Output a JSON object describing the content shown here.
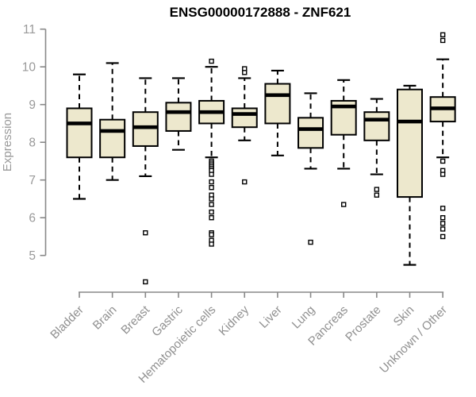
{
  "colors": {
    "background": "#ffffff",
    "box_fill": "#EDE8CD",
    "box_stroke": "#000000",
    "median": "#000000",
    "whisker": "#000000",
    "outlier_stroke": "#000000",
    "axis_line": "#888888",
    "tick_label": "#999999",
    "category_label": "#909090",
    "title": "#000000",
    "ylabel": "#999999"
  },
  "chart_data": {
    "type": "boxplot",
    "title": "ENSG00000172888 - ZNF621",
    "xlabel": "",
    "ylabel": "Expression",
    "ylim": [
      5,
      11
    ],
    "yticks": [
      5,
      6,
      7,
      8,
      9,
      10,
      11
    ],
    "grid": false,
    "legend": "none",
    "categories": [
      "Bladder",
      "Brain",
      "Breast",
      "Gastric",
      "Hematopoietic cells",
      "Kidney",
      "Liver",
      "Lung",
      "Pancreas",
      "Prostate",
      "Skin",
      "Unknown / Other"
    ],
    "series": [
      {
        "category": "Bladder",
        "whisker_low": 6.5,
        "q1": 7.6,
        "median": 8.5,
        "q3": 8.9,
        "whisker_high": 9.8,
        "outliers": []
      },
      {
        "category": "Brain",
        "whisker_low": 7.0,
        "q1": 7.6,
        "median": 8.3,
        "q3": 8.6,
        "whisker_high": 10.1,
        "outliers": []
      },
      {
        "category": "Breast",
        "whisker_low": 7.1,
        "q1": 7.9,
        "median": 8.4,
        "q3": 8.8,
        "whisker_high": 9.7,
        "outliers": [
          5.6,
          4.3
        ]
      },
      {
        "category": "Gastric",
        "whisker_low": 7.8,
        "q1": 8.3,
        "median": 8.8,
        "q3": 9.05,
        "whisker_high": 9.7,
        "outliers": []
      },
      {
        "category": "Hematopoietic cells",
        "whisker_low": 7.6,
        "q1": 8.5,
        "median": 8.8,
        "q3": 9.1,
        "whisker_high": 10.0,
        "outliers": [
          10.15,
          7.5,
          7.45,
          7.4,
          7.35,
          7.3,
          7.25,
          7.15,
          6.95,
          6.8,
          6.6,
          6.5,
          6.35,
          6.15,
          6.0,
          5.6,
          5.55,
          5.4,
          5.3
        ]
      },
      {
        "category": "Kidney",
        "whisker_low": 8.05,
        "q1": 8.4,
        "median": 8.75,
        "q3": 8.9,
        "whisker_high": 9.7,
        "outliers": [
          9.95,
          9.85,
          6.95
        ]
      },
      {
        "category": "Liver",
        "whisker_low": 7.65,
        "q1": 8.5,
        "median": 9.25,
        "q3": 9.55,
        "whisker_high": 9.9,
        "outliers": []
      },
      {
        "category": "Lung",
        "whisker_low": 7.3,
        "q1": 7.85,
        "median": 8.35,
        "q3": 8.65,
        "whisker_high": 9.3,
        "outliers": [
          5.35
        ]
      },
      {
        "category": "Pancreas",
        "whisker_low": 7.3,
        "q1": 8.2,
        "median": 8.95,
        "q3": 9.1,
        "whisker_high": 9.65,
        "outliers": [
          6.35
        ]
      },
      {
        "category": "Prostate",
        "whisker_low": 7.15,
        "q1": 8.05,
        "median": 8.6,
        "q3": 8.8,
        "whisker_high": 9.15,
        "outliers": [
          6.75,
          6.6
        ]
      },
      {
        "category": "Skin",
        "whisker_low": 4.75,
        "q1": 6.55,
        "median": 8.55,
        "q3": 9.4,
        "whisker_high": 9.5,
        "outliers": []
      },
      {
        "category": "Unknown / Other",
        "whisker_low": 7.6,
        "q1": 8.55,
        "median": 8.9,
        "q3": 9.2,
        "whisker_high": 10.2,
        "outliers": [
          10.85,
          10.7,
          7.5,
          7.25,
          7.15,
          6.25,
          6.0,
          5.85,
          5.7,
          5.5
        ]
      }
    ]
  }
}
